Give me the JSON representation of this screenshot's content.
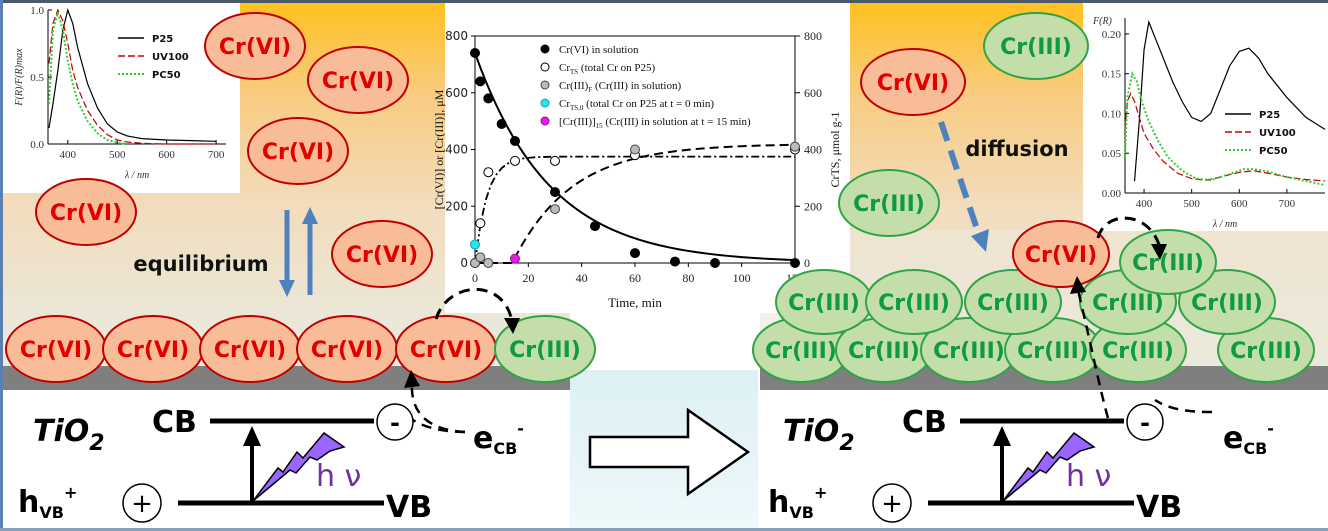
{
  "colors": {
    "cr6_fill": "#f8bd98",
    "cr6_stroke": "#c00000",
    "cr6_text": "#e00000",
    "cr3_fill": "#c3dea8",
    "cr3_stroke": "#2fa34a",
    "cr3_text": "#0e9a3e",
    "arrow_blue": "#4f81bd",
    "photon": "#9966ff",
    "hv_text": "#7030a0",
    "substrate": "#7f7f7f"
  },
  "species": {
    "cr6": "Cr(VI)",
    "cr3": "Cr(III)"
  },
  "left_panel": {
    "label_equilibrium": "equilibrium",
    "floating_cr6": [
      "Cr(VI)",
      "Cr(VI)",
      "Cr(VI)",
      "Cr(VI)",
      "Cr(VI)"
    ],
    "surface_cr6": [
      "Cr(VI)",
      "Cr(VI)",
      "Cr(VI)",
      "Cr(VI)",
      "Cr(VI)"
    ],
    "surface_cr3": "Cr(III)",
    "band": {
      "material": "TiO",
      "material_sub": "2",
      "cb": "CB",
      "vb": "VB",
      "hole": "h",
      "hole_sub": "VB",
      "hole_sup": "+",
      "electron": "e",
      "electron_sub": "CB",
      "electron_sup": "-",
      "minus": "-",
      "plus": "+",
      "photon": "h ν"
    }
  },
  "right_panel": {
    "label_diffusion": "diffusion",
    "floating": [
      "Cr(III)",
      "Cr(VI)",
      "Cr(III)"
    ],
    "stack_top": [
      "Cr(VI)",
      "Cr(III)"
    ],
    "stack_mid": [
      "Cr(III)",
      "Cr(III)",
      "Cr(III)",
      "Cr(III)",
      "Cr(III)"
    ],
    "stack_bottom": [
      "Cr(III)",
      "Cr(III)",
      "Cr(III)",
      "Cr(III)",
      "Cr(III)",
      "Cr(III)"
    ],
    "band": {
      "material": "TiO",
      "material_sub": "2",
      "cb": "CB",
      "vb": "VB",
      "hole": "h",
      "hole_sub": "VB",
      "hole_sup": "+",
      "electron": "e",
      "electron_sub": "CB",
      "electron_sup": "-",
      "minus": "-",
      "plus": "+",
      "photon": "h ν"
    }
  },
  "chart_data": [
    {
      "type": "line",
      "title": "",
      "xlabel": "λ / nm",
      "ylabel": "F(R)/F(R)max",
      "xlim": [
        360,
        720
      ],
      "ylim": [
        0,
        1.0
      ],
      "xticks": [
        "400",
        "500",
        "600",
        "700"
      ],
      "yticks": [
        "0.0",
        "0.5",
        "1.0"
      ],
      "legend": "top-right",
      "series": [
        {
          "name": "P25",
          "style": "solid",
          "color": "#000000",
          "x": [
            362,
            370,
            380,
            390,
            400,
            410,
            420,
            440,
            460,
            480,
            500,
            520,
            550,
            600,
            650,
            700
          ],
          "y": [
            0.12,
            0.3,
            0.55,
            0.85,
            1.0,
            0.9,
            0.72,
            0.45,
            0.27,
            0.15,
            0.09,
            0.06,
            0.04,
            0.03,
            0.025,
            0.02
          ]
        },
        {
          "name": "UV100",
          "style": "dashed",
          "color": "#c00000",
          "x": [
            362,
            370,
            380,
            390,
            400,
            410,
            420,
            440,
            460,
            480,
            500,
            520,
            550,
            600,
            650,
            700
          ],
          "y": [
            0.6,
            0.9,
            1.0,
            0.92,
            0.75,
            0.55,
            0.42,
            0.25,
            0.14,
            0.07,
            0.03,
            0.015,
            0.005,
            0.0,
            0.0,
            0.0
          ]
        },
        {
          "name": "PC50",
          "style": "dotted",
          "color": "#33cc33",
          "x": [
            362,
            370,
            380,
            390,
            400,
            410,
            420,
            440,
            460,
            480,
            500,
            520
          ],
          "y": [
            0.3,
            0.85,
            0.98,
            0.85,
            0.62,
            0.45,
            0.32,
            0.17,
            0.08,
            0.03,
            0.01,
            0.0
          ]
        }
      ]
    },
    {
      "type": "scatter",
      "title": "",
      "xlabel": "Time, min",
      "ylabel": "[Cr(VI)] or [Cr(III)], μM",
      "ylabel2": "CrTS, μmol g-1",
      "xlim": [
        0,
        120
      ],
      "ylim": [
        0,
        800
      ],
      "ylim2": [
        0,
        800
      ],
      "xticks": [
        "0",
        "20",
        "40",
        "60",
        "80",
        "100",
        "120"
      ],
      "yticks": [
        "0",
        "200",
        "400",
        "600",
        "800"
      ],
      "yticks2": [
        "0",
        "200",
        "400",
        "600",
        "800"
      ],
      "legend": "top-right",
      "legend_entries": [
        {
          "text": "Cr(VI) in solution",
          "marker": "filled-black"
        },
        {
          "text": "Cr",
          "sub": "TS",
          "rest": " (total Cr on P25)",
          "marker": "open"
        },
        {
          "text": "Cr(III)",
          "sub": "F",
          "rest": " (Cr(III) in solution)",
          "marker": "grey"
        },
        {
          "text": "Cr",
          "sub": "TS,0",
          "rest": " (total Cr on P25 at t = 0 min)",
          "marker": "cyan"
        },
        {
          "text": "[Cr(III)]",
          "sub": "15",
          "rest": " (Cr(III) in solution at t = 15 min)",
          "marker": "magenta"
        }
      ],
      "series": [
        {
          "name": "Cr(VI) in solution",
          "marker": "filled-black",
          "x": [
            0,
            2,
            5,
            10,
            15,
            30,
            45,
            60,
            75,
            90,
            120
          ],
          "y": [
            740,
            640,
            580,
            490,
            430,
            250,
            130,
            35,
            5,
            0,
            0
          ]
        },
        {
          "name": "CrTS (total Cr on P25)",
          "marker": "open",
          "x": [
            0,
            2,
            5,
            15,
            30,
            60,
            120
          ],
          "y": [
            0,
            140,
            320,
            360,
            360,
            380,
            400
          ]
        },
        {
          "name": "Cr(III)F (Cr(III) in solution)",
          "marker": "grey",
          "x": [
            0,
            2,
            5,
            30,
            60,
            120
          ],
          "y": [
            0,
            20,
            0,
            190,
            400,
            410
          ]
        },
        {
          "name": "CrTS,0 (total Cr on P25 at t = 0 min)",
          "marker": "cyan",
          "x": [
            0
          ],
          "y": [
            65
          ]
        },
        {
          "name": "[Cr(III)]15 (Cr(III) in solution at t = 15 min)",
          "marker": "magenta",
          "x": [
            15
          ],
          "y": [
            15
          ]
        }
      ]
    },
    {
      "type": "line",
      "title": "",
      "xlabel": "λ / nm",
      "ylabel": "F(R)",
      "xlim": [
        360,
        780
      ],
      "ylim": [
        0,
        0.22
      ],
      "xticks": [
        "400",
        "500",
        "600",
        "700"
      ],
      "yticks": [
        "0.00",
        "0.05",
        "0.10",
        "0.15",
        "0.20"
      ],
      "legend": "center-right",
      "series": [
        {
          "name": "P25",
          "style": "solid",
          "color": "#000000",
          "x": [
            380,
            390,
            400,
            410,
            420,
            440,
            460,
            480,
            500,
            520,
            540,
            560,
            580,
            600,
            620,
            640,
            660,
            700,
            740,
            780
          ],
          "y": [
            0.015,
            0.09,
            0.18,
            0.215,
            0.2,
            0.17,
            0.14,
            0.115,
            0.095,
            0.09,
            0.1,
            0.13,
            0.16,
            0.178,
            0.182,
            0.17,
            0.15,
            0.12,
            0.095,
            0.08
          ]
        },
        {
          "name": "UV100",
          "style": "dashed",
          "color": "#c00000",
          "x": [
            360,
            365,
            372,
            380,
            390,
            400,
            420,
            440,
            470,
            500,
            530,
            560,
            600,
            630,
            660,
            700,
            740,
            780
          ],
          "y": [
            0.08,
            0.115,
            0.125,
            0.115,
            0.095,
            0.075,
            0.055,
            0.04,
            0.025,
            0.018,
            0.016,
            0.02,
            0.026,
            0.028,
            0.025,
            0.02,
            0.017,
            0.015
          ]
        },
        {
          "name": "PC50",
          "style": "dotted",
          "color": "#33cc33",
          "x": [
            360,
            365,
            375,
            385,
            395,
            410,
            430,
            450,
            480,
            510,
            540,
            570,
            610,
            630,
            660,
            700,
            740,
            780
          ],
          "y": [
            0.045,
            0.12,
            0.15,
            0.14,
            0.115,
            0.09,
            0.065,
            0.045,
            0.028,
            0.018,
            0.016,
            0.022,
            0.03,
            0.03,
            0.027,
            0.02,
            0.015,
            0.01
          ]
        }
      ]
    }
  ]
}
